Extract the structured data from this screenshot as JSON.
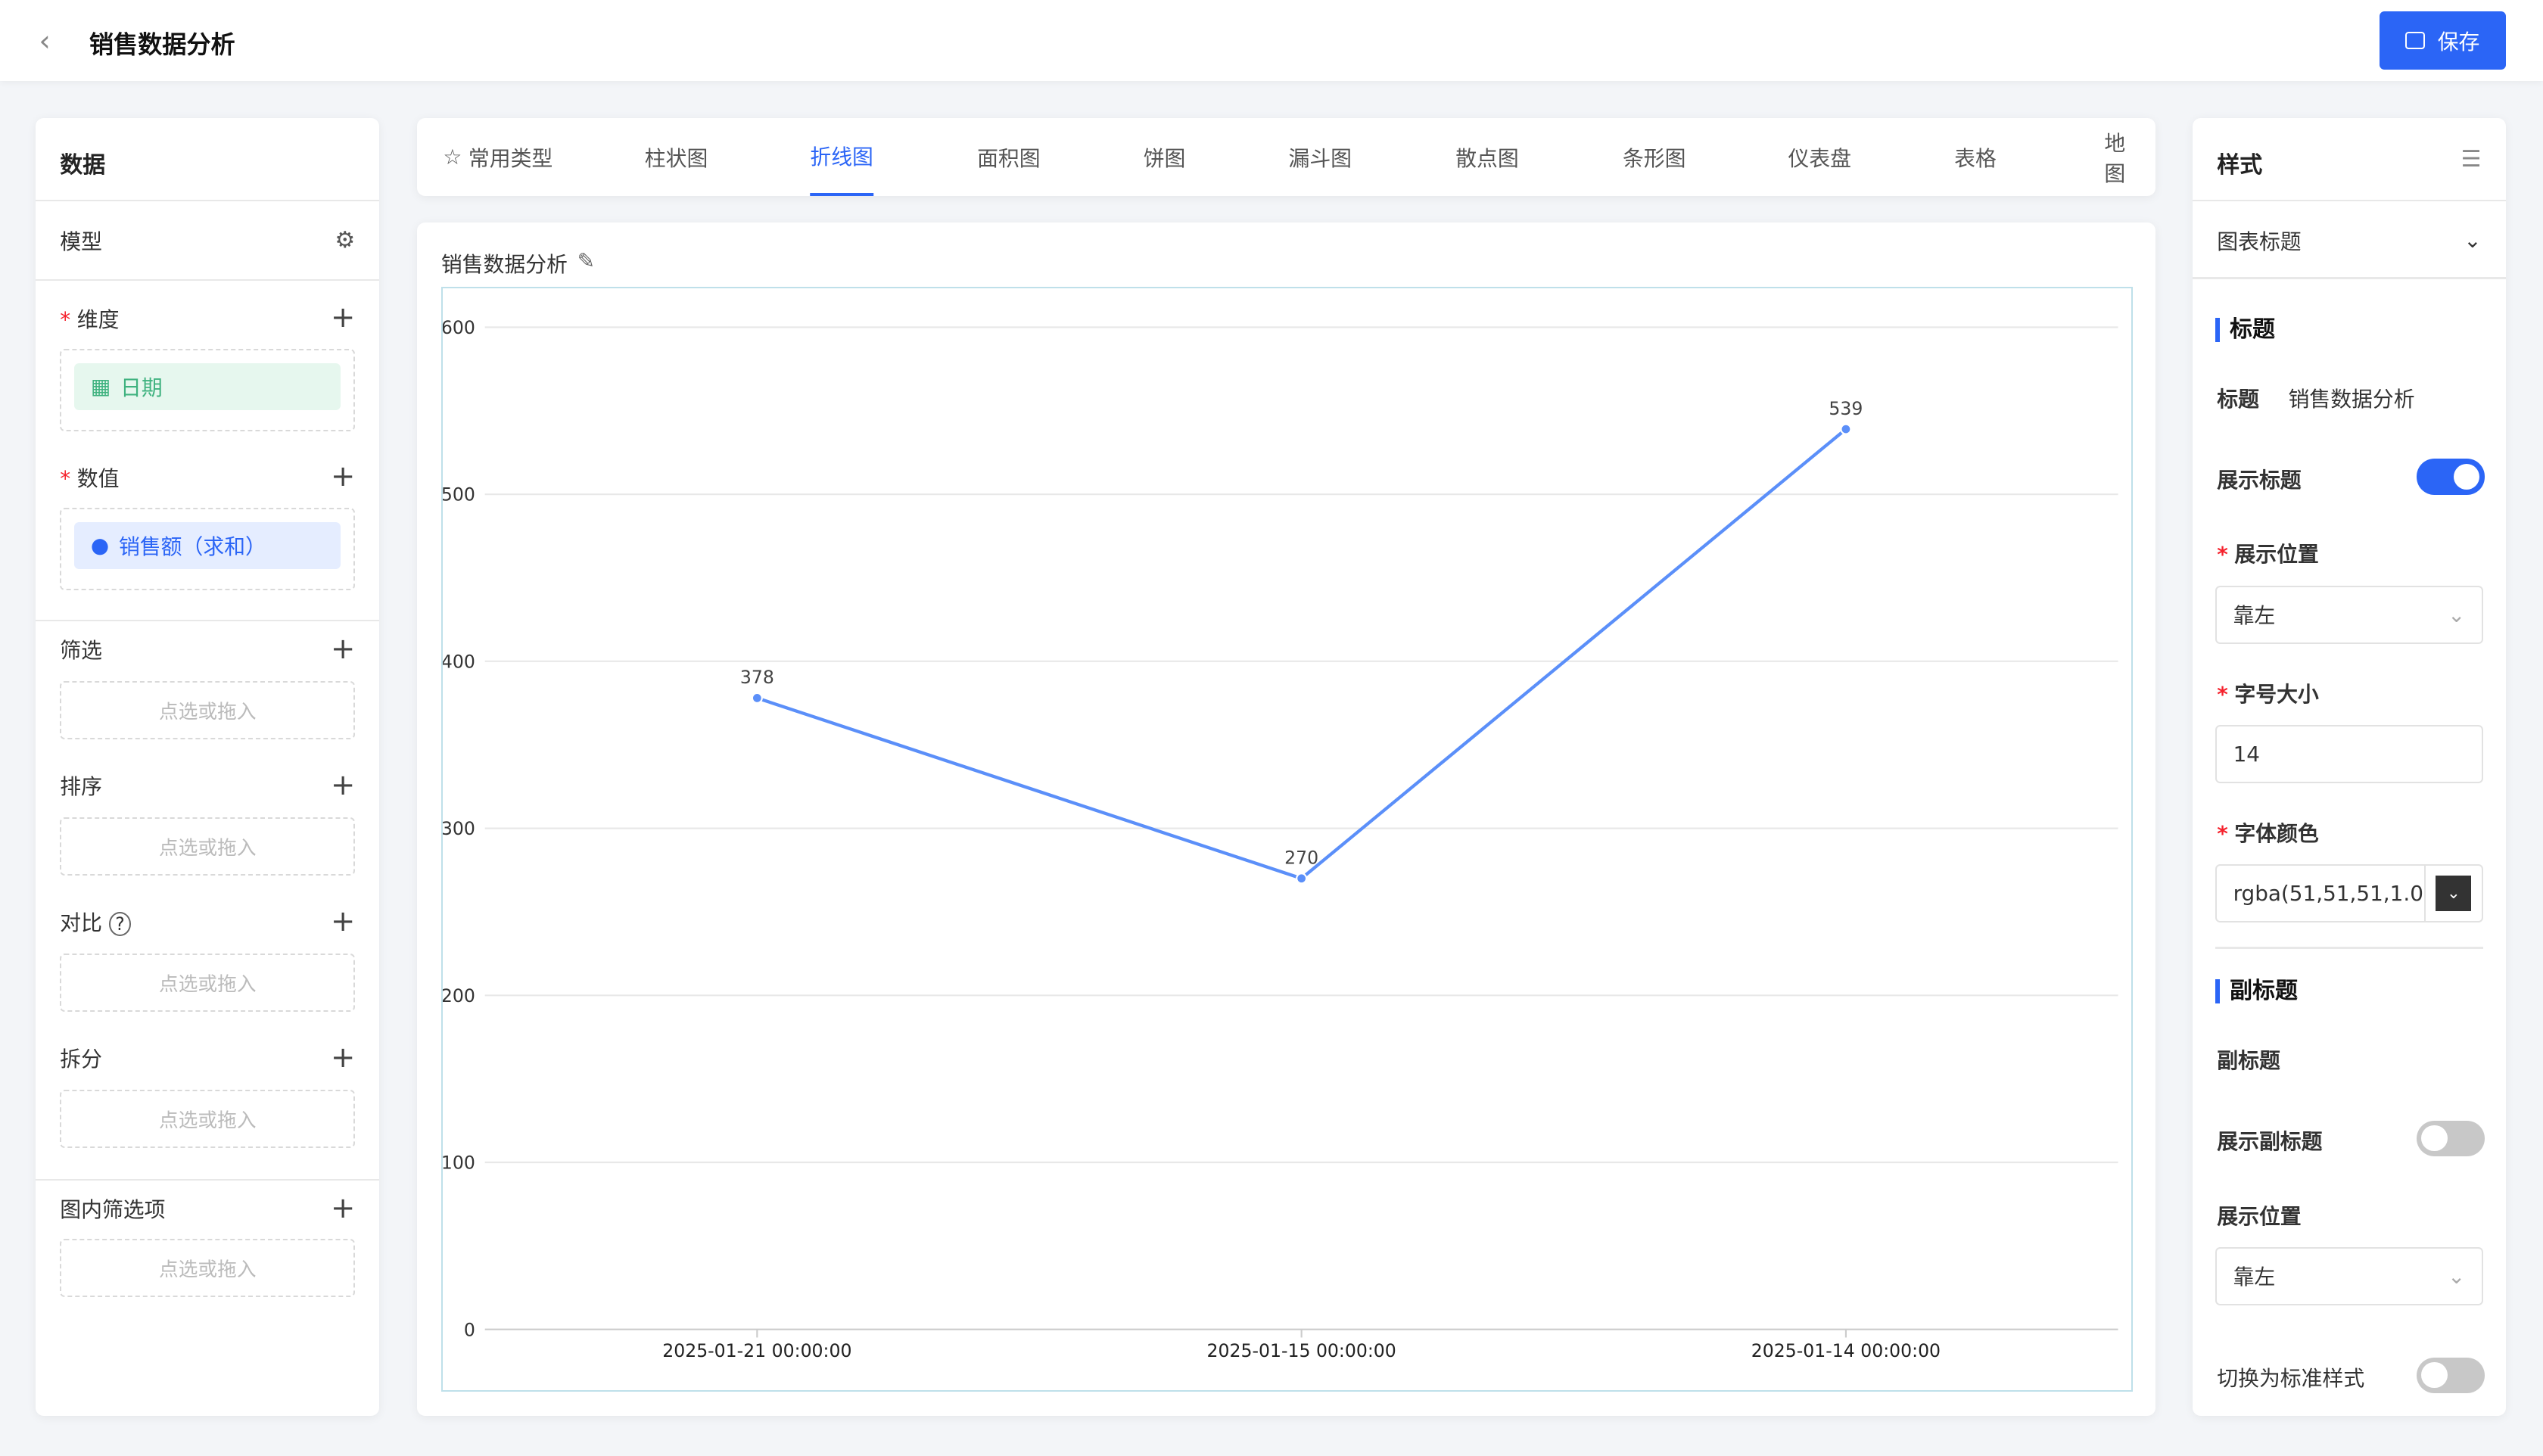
{
  "header": {
    "title": "销售数据分析",
    "save_label": "保存"
  },
  "left": {
    "title": "数据",
    "model": "模型",
    "dimension": "维度",
    "dimension_field": "日期",
    "value": "数值",
    "value_field": "销售额（求和）",
    "filter": "筛选",
    "sort": "排序",
    "compare": "对比",
    "split": "拆分",
    "inner_filter": "图内筛选项",
    "placeholder": "点选或拖入"
  },
  "tabs": [
    "常用类型",
    "柱状图",
    "折线图",
    "面积图",
    "饼图",
    "漏斗图",
    "散点图",
    "条形图",
    "仪表盘",
    "表格",
    "地图"
  ],
  "active_tab": "折线图",
  "chart_data": {
    "type": "line",
    "title": "销售数据分析",
    "categories": [
      "2025-01-21 00:00:00",
      "2025-01-15 00:00:00",
      "2025-01-14 00:00:00"
    ],
    "values": [
      378,
      270,
      539
    ],
    "ylim": [
      0,
      600
    ],
    "yticks": [
      0,
      100,
      200,
      300,
      400,
      500,
      600
    ],
    "grid": true,
    "color": "#5b8ff9"
  },
  "right": {
    "title": "样式",
    "section": "图表标题",
    "title_group": "标题",
    "title_label": "标题",
    "title_value": "销售数据分析",
    "show_title": "展示标题",
    "show_title_on": true,
    "position": "展示位置",
    "position_value": "靠左",
    "font_size": "字号大小",
    "font_size_value": "14",
    "font_color": "字体颜色",
    "font_color_value": "rgba(51,51,51,1.0",
    "subtitle_group": "副标题",
    "subtitle_label": "副标题",
    "show_subtitle": "展示副标题",
    "show_subtitle_on": false,
    "sub_position": "展示位置",
    "sub_position_value": "靠左",
    "standard_style": "切换为标准样式",
    "standard_style_on": false
  },
  "colors": {
    "accent": "#2b65f6"
  }
}
